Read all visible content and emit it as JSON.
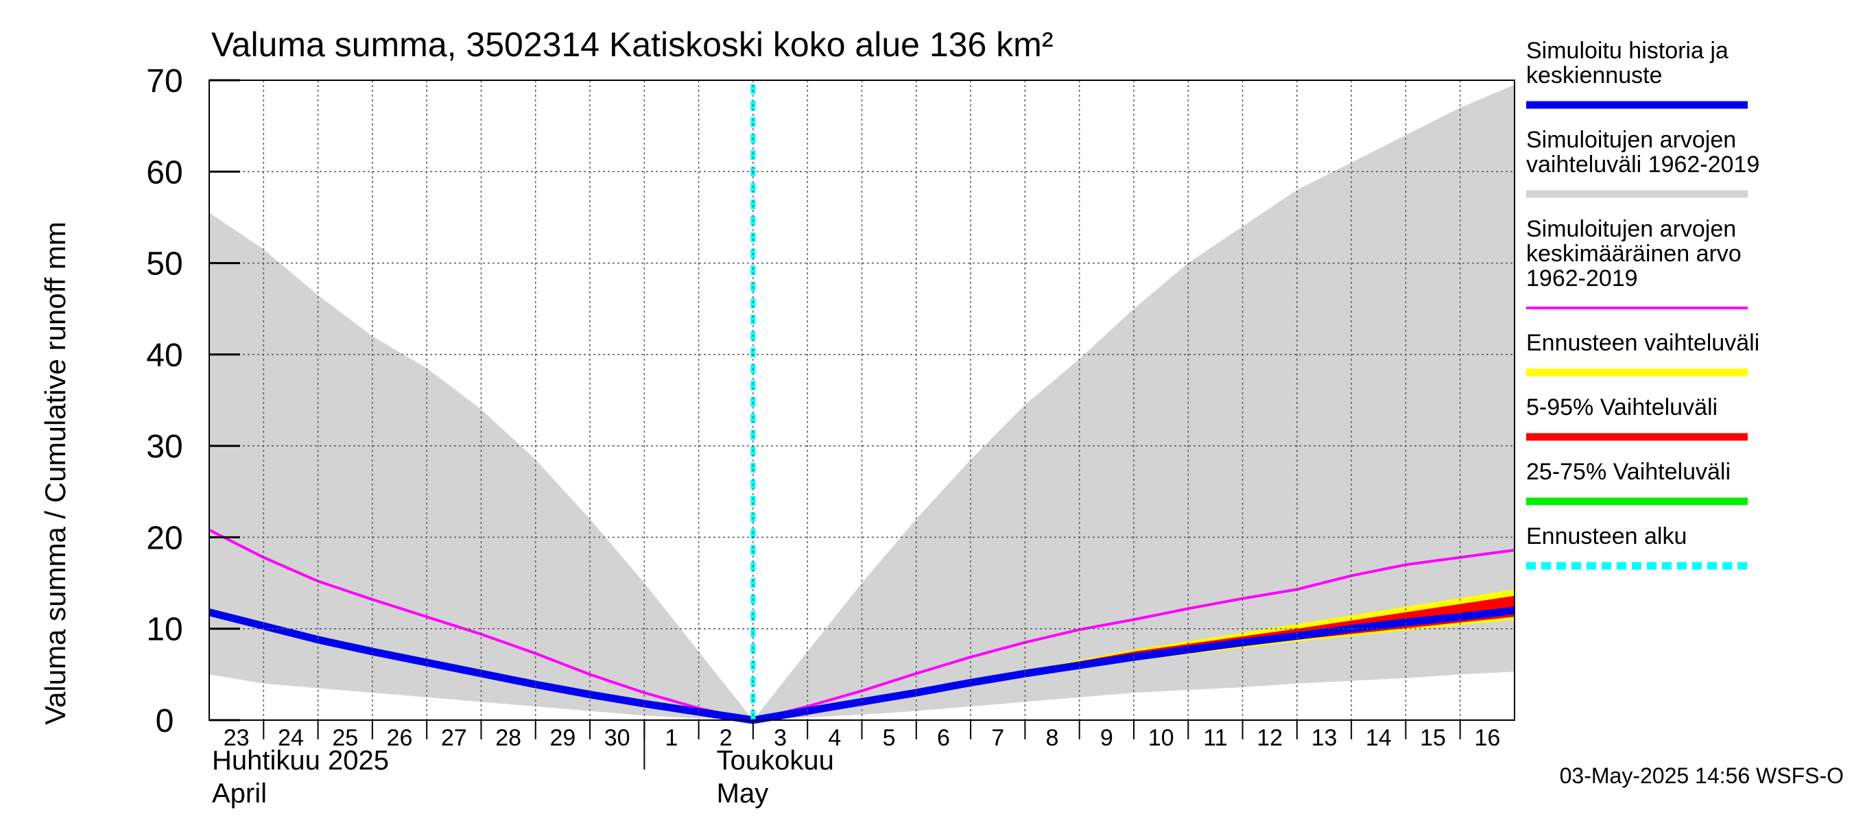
{
  "chart_data": {
    "type": "area",
    "title": "Valuma summa, 3502314 Katiskoski koko alue 136 km²",
    "ylabel": "Valuma summa / Cumulative runoff    mm",
    "ylim": [
      0,
      70
    ],
    "yticks": [
      0,
      10,
      20,
      30,
      40,
      50,
      60,
      70
    ],
    "grid": true,
    "x_tick_labels": [
      "23",
      "24",
      "25",
      "26",
      "27",
      "28",
      "29",
      "30",
      "1",
      "2",
      "3",
      "4",
      "5",
      "6",
      "7",
      "8",
      "9",
      "10",
      "11",
      "12",
      "13",
      "14",
      "15",
      "16"
    ],
    "month_labels": [
      {
        "line1": "Huhtikuu  2025",
        "line2": "April"
      },
      {
        "line1": "Toukokuu",
        "line2": "May"
      }
    ],
    "forecast_start": "2025-05-03",
    "series": [
      {
        "name": "Simuloitujen arvojen vaihteluväli 1962-2019",
        "color": "#d3d3d3",
        "kind": "band",
        "x": [
          "2025-04-23",
          "2025-04-24",
          "2025-04-25",
          "2025-04-26",
          "2025-04-27",
          "2025-04-28",
          "2025-04-29",
          "2025-04-30",
          "2025-05-01",
          "2025-05-02",
          "2025-05-03",
          "2025-05-04",
          "2025-05-05",
          "2025-05-06",
          "2025-05-07",
          "2025-05-08",
          "2025-05-09",
          "2025-05-10",
          "2025-05-11",
          "2025-05-12",
          "2025-05-13",
          "2025-05-14",
          "2025-05-15",
          "2025-05-16",
          "2025-05-17"
        ],
        "upper": [
          55.5,
          51.5,
          46.5,
          42,
          38.5,
          34,
          28.5,
          22,
          15,
          7.5,
          0,
          7.5,
          15,
          22,
          28.5,
          34.5,
          39.5,
          45,
          50,
          54,
          58,
          61,
          64,
          67,
          69.5
        ],
        "lower": [
          5,
          4,
          3.5,
          3,
          2.5,
          2,
          1.5,
          1,
          0.5,
          0.2,
          0,
          0.3,
          0.6,
          1,
          1.5,
          2,
          2.5,
          3,
          3.3,
          3.6,
          4,
          4.3,
          4.6,
          5,
          5.3
        ]
      },
      {
        "name": "Simuloitujen arvojen keskimääräinen arvo 1962-2019",
        "color": "#ff00ff",
        "kind": "line",
        "x": [
          "2025-04-23",
          "2025-04-24",
          "2025-04-25",
          "2025-04-26",
          "2025-04-27",
          "2025-04-28",
          "2025-04-29",
          "2025-04-30",
          "2025-05-01",
          "2025-05-02",
          "2025-05-03",
          "2025-05-04",
          "2025-05-05",
          "2025-05-06",
          "2025-05-07",
          "2025-05-08",
          "2025-05-09",
          "2025-05-10",
          "2025-05-11",
          "2025-05-12",
          "2025-05-13",
          "2025-05-14",
          "2025-05-15",
          "2025-05-16",
          "2025-05-17"
        ],
        "values": [
          20.8,
          17.8,
          15.2,
          13.2,
          11.3,
          9.4,
          7.3,
          5,
          3,
          1.3,
          0,
          1.5,
          3.2,
          5.1,
          6.9,
          8.5,
          9.9,
          11,
          12.2,
          13.3,
          14.3,
          15.8,
          17,
          17.8,
          18.6
        ]
      },
      {
        "name": "Ennusteen vaihteluväli",
        "color": "#ffff00",
        "kind": "band",
        "x": [
          "2025-05-07",
          "2025-05-10",
          "2025-05-13",
          "2025-05-17"
        ],
        "upper": [
          4.3,
          7.7,
          10.5,
          14.3
        ],
        "lower": [
          4.1,
          6.5,
          8.6,
          11
        ]
      },
      {
        "name": "5-95% Vaihteluväli",
        "color": "#ff0000",
        "kind": "band",
        "x": [
          "2025-05-07",
          "2025-05-10",
          "2025-05-13",
          "2025-05-17"
        ],
        "upper": [
          4.3,
          7.5,
          10,
          13.6
        ],
        "lower": [
          4.1,
          6.6,
          8.8,
          11.3
        ]
      },
      {
        "name": "25-75% Vaihteluväli",
        "color": "#00ee00",
        "kind": "band",
        "x": [
          "2025-05-07",
          "2025-05-10",
          "2025-05-13",
          "2025-05-17"
        ],
        "upper": [
          4.2,
          7.1,
          9.3,
          12.4
        ],
        "lower": [
          4.1,
          6.7,
          8.9,
          11.7
        ]
      },
      {
        "name": "Simuloitu historia ja keskiennuste",
        "color": "#0000ee",
        "kind": "line",
        "x": [
          "2025-04-23",
          "2025-04-24",
          "2025-04-25",
          "2025-04-26",
          "2025-04-27",
          "2025-04-28",
          "2025-04-29",
          "2025-04-30",
          "2025-05-01",
          "2025-05-02",
          "2025-05-03",
          "2025-05-04",
          "2025-05-05",
          "2025-05-06",
          "2025-05-07",
          "2025-05-08",
          "2025-05-09",
          "2025-05-10",
          "2025-05-11",
          "2025-05-12",
          "2025-05-13",
          "2025-05-14",
          "2025-05-15",
          "2025-05-16",
          "2025-05-17"
        ],
        "values": [
          11.8,
          10.3,
          8.8,
          7.5,
          6.3,
          5.1,
          3.9,
          2.8,
          1.8,
          0.9,
          0,
          1,
          2,
          3,
          4.1,
          5.1,
          6,
          6.9,
          7.7,
          8.5,
          9.2,
          10,
          10.7,
          11.3,
          12
        ]
      }
    ],
    "legend": [
      {
        "lines": [
          "Simuloitu historia ja",
          "keskiennuste"
        ],
        "color": "#0000ee",
        "style": "solid"
      },
      {
        "lines": [
          "Simuloitujen arvojen",
          "vaihteluväli 1962-2019"
        ],
        "color": "#d3d3d3",
        "style": "solid"
      },
      {
        "lines": [
          "Simuloitujen arvojen",
          "keskimääräinen arvo",
          "   1962-2019"
        ],
        "color": "#ff00ff",
        "style": "thin"
      },
      {
        "lines": [
          "Ennusteen vaihteluväli"
        ],
        "color": "#ffff00",
        "style": "solid"
      },
      {
        "lines": [
          "5-95% Vaihteluväli"
        ],
        "color": "#ff0000",
        "style": "solid"
      },
      {
        "lines": [
          "25-75% Vaihteluväli"
        ],
        "color": "#00ee00",
        "style": "solid"
      },
      {
        "lines": [
          "Ennusteen alku"
        ],
        "color": "#00ffff",
        "style": "dashed"
      }
    ],
    "legend_position": "right",
    "footer": "03-May-2025 14:56 WSFS-O"
  }
}
